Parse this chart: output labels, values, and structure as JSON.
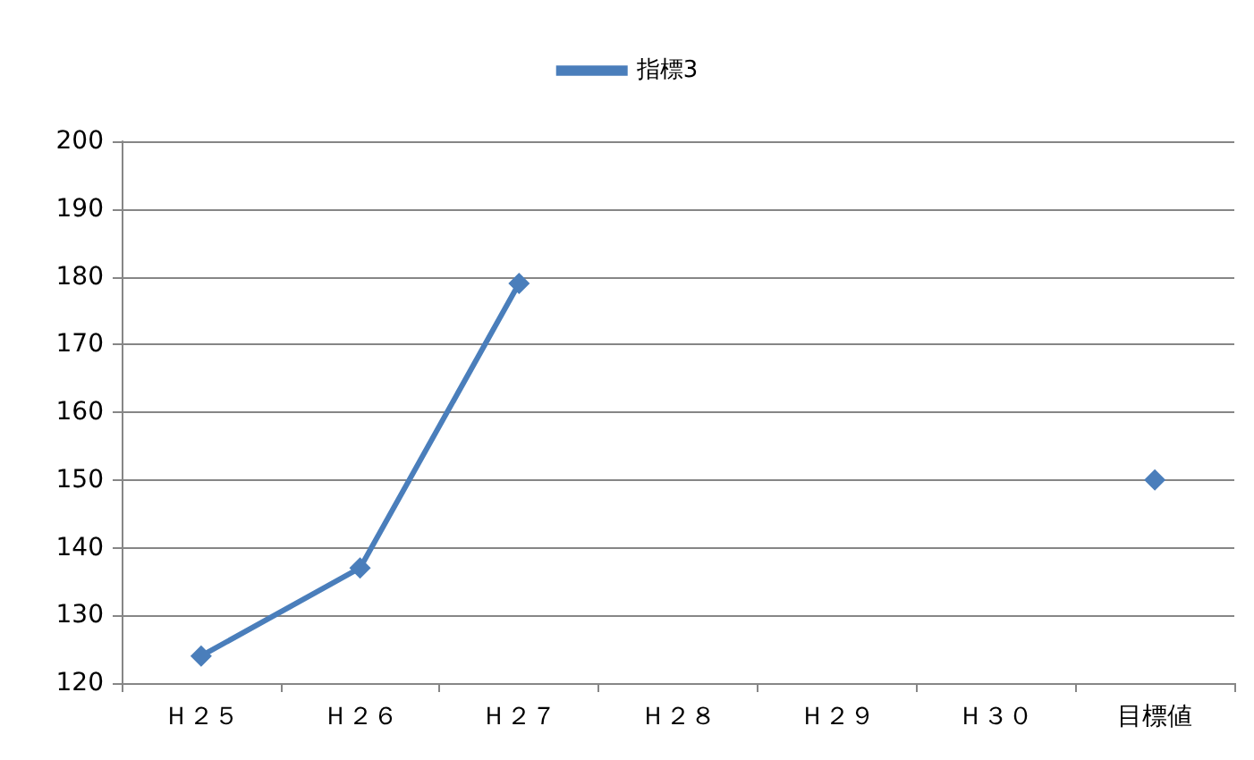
{
  "chart_data": {
    "type": "line",
    "categories": [
      "Ｈ２５",
      "Ｈ２６",
      "Ｈ２７",
      "Ｈ２８",
      "Ｈ２９",
      "Ｈ３０",
      "目標値"
    ],
    "series": [
      {
        "name": "指標3",
        "color": "#4a7ebb",
        "values": [
          124,
          137,
          179,
          null,
          null,
          null,
          150
        ]
      }
    ],
    "ylim": [
      120,
      200
    ],
    "yticks": [
      120,
      130,
      140,
      150,
      160,
      170,
      180,
      190,
      200
    ],
    "grid": "y",
    "legend": "top",
    "marker": "diamond",
    "line_style": "solid"
  }
}
